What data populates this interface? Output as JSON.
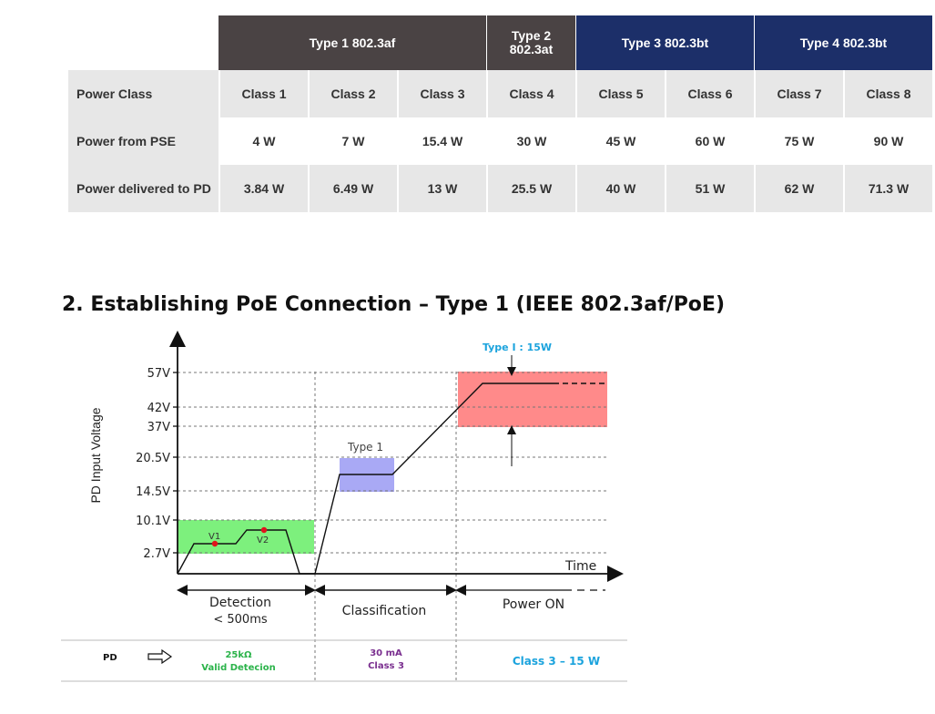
{
  "table": {
    "headers": [
      {
        "label": "Type 1 802.3af",
        "span": 3,
        "color": "#4a4344"
      },
      {
        "label_line1": "Type 2",
        "label_line2": "802.3at",
        "span": 1,
        "color": "#4a4344"
      },
      {
        "label": "Type 3 802.3bt",
        "span": 2,
        "color": "#1c2f69"
      },
      {
        "label": "Type 4 802.3bt",
        "span": 2,
        "color": "#1c2f69"
      }
    ],
    "rows": [
      {
        "label": "Power Class",
        "cells": [
          "Class 1",
          "Class 2",
          "Class 3",
          "Class 4",
          "Class 5",
          "Class 6",
          "Class 7",
          "Class 8"
        ]
      },
      {
        "label": "Power from PSE",
        "cells": [
          "4 W",
          "7 W",
          "15.4 W",
          "30 W",
          "45 W",
          "60 W",
          "75 W",
          "90 W"
        ]
      },
      {
        "label": "Power delivered to PD",
        "cells": [
          "3.84 W",
          "6.49 W",
          "13 W",
          "25.5 W",
          "40 W",
          "51 W",
          "62 W",
          "71.3 W"
        ]
      }
    ]
  },
  "section_title": "2. Establishing PoE Connection – Type 1 (IEEE 802.3af/PoE)",
  "chart_data": {
    "type": "line",
    "ylabel": "PD Input Voltage",
    "xlabel": "Time",
    "y_ticks": [
      "57V",
      "42V",
      "37V",
      "20.5V",
      "14.5V",
      "10.1V",
      "2.7V"
    ],
    "bands": [
      {
        "name": "detection-band",
        "y_range": [
          "2.7V",
          "10.1V"
        ],
        "color": "#7df07d"
      },
      {
        "name": "type1-band",
        "label": "Type 1",
        "y_range": [
          "14.5V",
          "20.5V"
        ],
        "color": "#a9a9f5"
      },
      {
        "name": "power-on-band",
        "y_range": [
          "37V",
          "57V"
        ],
        "color": "#ff8a8a"
      }
    ],
    "points": [
      {
        "label": "V1",
        "color": "#e0141c"
      },
      {
        "label": "V2",
        "color": "#e0141c"
      }
    ],
    "annotation_top": "Type I : 15W",
    "annotation_color": "#1ba3dd",
    "phases": [
      {
        "label": "Detection",
        "sublabel": "< 500ms"
      },
      {
        "label": "Classification"
      },
      {
        "label": "Power ON"
      }
    ]
  },
  "pd_row": {
    "label": "PD",
    "detection_line1": "25kΩ",
    "detection_line2": "Valid Detecion",
    "detection_color": "#2bb34a",
    "classification_line1": "30 mA",
    "classification_line2": "Class 3",
    "classification_color": "#7a2f8f",
    "power_on": "Class 3 – 15 W",
    "power_on_color": "#1ba3dd"
  }
}
